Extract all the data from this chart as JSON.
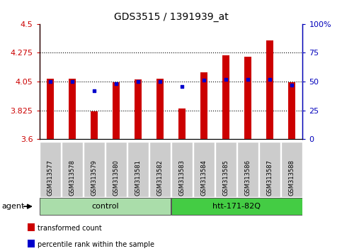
{
  "title": "GDS3515 / 1391939_at",
  "samples": [
    "GSM313577",
    "GSM313578",
    "GSM313579",
    "GSM313580",
    "GSM313581",
    "GSM313582",
    "GSM313583",
    "GSM313584",
    "GSM313585",
    "GSM313586",
    "GSM313587",
    "GSM313588"
  ],
  "bar_values": [
    4.075,
    4.075,
    3.82,
    4.045,
    4.065,
    4.075,
    3.84,
    4.12,
    4.255,
    4.245,
    4.37,
    4.045
  ],
  "percentile_values": [
    50,
    50,
    42,
    48,
    50,
    50,
    46,
    51,
    52,
    52,
    52,
    47
  ],
  "ylim_left": [
    3.6,
    4.5
  ],
  "ylim_right": [
    0,
    100
  ],
  "yticks_left": [
    3.6,
    3.825,
    4.05,
    4.275,
    4.5
  ],
  "ytick_labels_left": [
    "3.6",
    "3.825",
    "4.05",
    "4.275",
    "4.5"
  ],
  "yticks_right": [
    0,
    25,
    50,
    75,
    100
  ],
  "ytick_labels_right": [
    "0",
    "25",
    "50",
    "75",
    "100%"
  ],
  "grid_values": [
    3.825,
    4.05,
    4.275
  ],
  "bar_color": "#cc0000",
  "bar_bottom": 3.6,
  "dot_color": "#0000cc",
  "groups": [
    {
      "label": "control",
      "start": 0,
      "end": 5,
      "color": "#aaddaa"
    },
    {
      "label": "htt-171-82Q",
      "start": 6,
      "end": 11,
      "color": "#44cc44"
    }
  ],
  "agent_label": "agent",
  "legend_items": [
    {
      "color": "#cc0000",
      "label": "transformed count"
    },
    {
      "color": "#0000cc",
      "label": "percentile rank within the sample"
    }
  ],
  "left_axis_color": "#cc0000",
  "right_axis_color": "#0000bb",
  "tick_bg_color": "#cccccc"
}
